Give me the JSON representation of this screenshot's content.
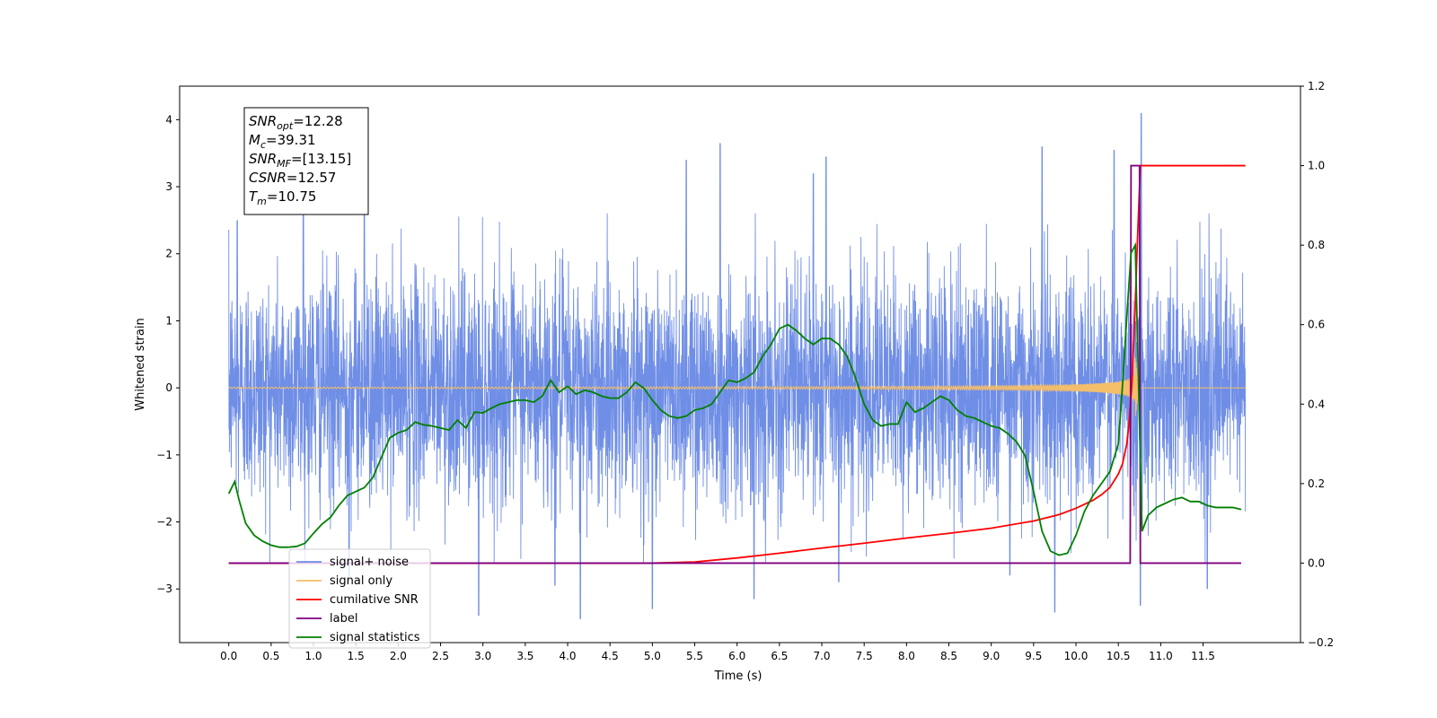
{
  "chart_data": {
    "type": "line",
    "xlabel": "Time (s)",
    "ylabel": "Whitened strain",
    "xlim": [
      -0.58,
      12.65
    ],
    "ylim": [
      -3.8,
      4.5
    ],
    "y2lim": [
      -0.2,
      1.2
    ],
    "grid": false,
    "x_ticks": [
      0.0,
      0.5,
      1.0,
      1.5,
      2.0,
      2.5,
      3.0,
      3.5,
      4.0,
      4.5,
      5.0,
      5.5,
      6.0,
      6.5,
      7.0,
      7.5,
      8.0,
      8.5,
      9.0,
      9.5,
      10.0,
      10.5,
      11.0,
      11.5
    ],
    "x_tick_labels": [
      "0.0",
      "0.5",
      "1.0",
      "1.5",
      "2.0",
      "2.5",
      "3.0",
      "3.5",
      "4.0",
      "4.5",
      "5.0",
      "5.5",
      "6.0",
      "6.5",
      "7.0",
      "7.5",
      "8.0",
      "8.5",
      "9.0",
      "9.5",
      "10.0",
      "10.5",
      "11.0",
      "11.5"
    ],
    "y_ticks": [
      -3,
      -2,
      -1,
      0,
      1,
      2,
      3,
      4
    ],
    "y_tick_labels": [
      "−3",
      "−2",
      "−1",
      "0",
      "1",
      "2",
      "3",
      "4"
    ],
    "y2_ticks": [
      -0.2,
      0.0,
      0.2,
      0.4,
      0.6,
      0.8,
      1.0,
      1.2
    ],
    "y2_tick_labels": [
      "−0.2",
      "0.0",
      "0.2",
      "0.4",
      "0.6",
      "0.8",
      "1.0",
      "1.2"
    ],
    "annotation": {
      "lines": [
        {
          "base": "SNR",
          "sub": "opt",
          "rest": "=12.28"
        },
        {
          "base": "M",
          "sub": "c",
          "rest": "=39.31"
        },
        {
          "base": "SNR",
          "sub": "MF",
          "rest": "=[13.15]"
        },
        {
          "base": "CSNR",
          "sub": "",
          "rest": "=12.57"
        },
        {
          "base": "T",
          "sub": "m",
          "rest": "=10.75"
        }
      ]
    },
    "legend": {
      "position": "lower-left",
      "entries": [
        {
          "label": "signal+ noise",
          "color": "#6f8ee6"
        },
        {
          "label": "signal only",
          "color": "#f5be6a"
        },
        {
          "label": "cumilative SNR",
          "color": "#ff0000"
        },
        {
          "label": "label",
          "color": "#800080"
        },
        {
          "label": "signal statistics",
          "color": "#008000"
        }
      ]
    },
    "series": [
      {
        "name": "signal+ noise",
        "axis": "left",
        "color": "#6f8ee6",
        "description_noise": {
          "x_start": 0.0,
          "x_end": 12.0,
          "std": 0.85
        },
        "peaks": [
          {
            "x": 0.1,
            "y": 2.5
          },
          {
            "x": 0.88,
            "y": 3.35
          },
          {
            "x": 1.6,
            "y": 3.1
          },
          {
            "x": 1.42,
            "y": -2.9
          },
          {
            "x": 2.95,
            "y": -3.4
          },
          {
            "x": 3.85,
            "y": -2.95
          },
          {
            "x": 4.15,
            "y": -3.45
          },
          {
            "x": 5.0,
            "y": -3.3
          },
          {
            "x": 5.4,
            "y": 3.4
          },
          {
            "x": 5.8,
            "y": 3.65
          },
          {
            "x": 6.2,
            "y": -3.15
          },
          {
            "x": 6.9,
            "y": 3.2
          },
          {
            "x": 7.05,
            "y": 3.45
          },
          {
            "x": 7.2,
            "y": -2.9
          },
          {
            "x": 9.22,
            "y": -2.8
          },
          {
            "x": 9.6,
            "y": 3.6
          },
          {
            "x": 9.75,
            "y": -3.35
          },
          {
            "x": 10.45,
            "y": 3.55
          },
          {
            "x": 10.77,
            "y": 4.1
          },
          {
            "x": 10.76,
            "y": -3.25
          },
          {
            "x": 11.55,
            "y": -3.0
          }
        ]
      },
      {
        "name": "signal only",
        "axis": "left",
        "color": "#f5be6a",
        "chirp": {
          "x_start": 0.0,
          "x_merge": 10.7,
          "x_end": 12.0,
          "peak_amp": 0.45
        }
      },
      {
        "name": "cumilative SNR",
        "axis": "right",
        "color": "#ff0000",
        "x": [
          0.0,
          5.0,
          5.5,
          6.0,
          6.5,
          7.0,
          7.5,
          8.0,
          8.5,
          9.0,
          9.5,
          9.8,
          10.0,
          10.2,
          10.3,
          10.4,
          10.5,
          10.55,
          10.6,
          10.63,
          10.66,
          10.68,
          10.7,
          10.72,
          10.76,
          12.0
        ],
        "y": [
          0.0,
          0.0,
          0.003,
          0.013,
          0.025,
          0.038,
          0.05,
          0.063,
          0.075,
          0.088,
          0.106,
          0.122,
          0.138,
          0.158,
          0.172,
          0.19,
          0.224,
          0.25,
          0.3,
          0.36,
          0.45,
          0.55,
          0.65,
          0.78,
          1.0,
          1.0
        ]
      },
      {
        "name": "label",
        "axis": "right",
        "color": "#800080",
        "x": [
          0.0,
          10.64,
          10.65,
          10.75,
          10.76,
          11.95
        ],
        "y": [
          0.0,
          0.0,
          1.0,
          1.0,
          0.0,
          0.0
        ]
      },
      {
        "name": "signal statistics",
        "axis": "right",
        "color": "#008000",
        "x": [
          0.0,
          0.07,
          0.12,
          0.2,
          0.3,
          0.4,
          0.5,
          0.6,
          0.7,
          0.8,
          0.9,
          1.0,
          1.1,
          1.2,
          1.3,
          1.4,
          1.5,
          1.6,
          1.7,
          1.8,
          1.9,
          2.0,
          2.1,
          2.2,
          2.3,
          2.4,
          2.5,
          2.6,
          2.7,
          2.8,
          2.9,
          3.0,
          3.1,
          3.2,
          3.3,
          3.4,
          3.5,
          3.6,
          3.7,
          3.8,
          3.9,
          4.0,
          4.1,
          4.2,
          4.3,
          4.4,
          4.5,
          4.6,
          4.7,
          4.8,
          4.9,
          5.0,
          5.1,
          5.2,
          5.3,
          5.4,
          5.5,
          5.6,
          5.7,
          5.8,
          5.9,
          6.0,
          6.1,
          6.2,
          6.3,
          6.4,
          6.5,
          6.6,
          6.7,
          6.8,
          6.9,
          7.0,
          7.1,
          7.2,
          7.3,
          7.4,
          7.5,
          7.6,
          7.7,
          7.8,
          7.9,
          8.0,
          8.1,
          8.2,
          8.3,
          8.4,
          8.5,
          8.6,
          8.7,
          8.8,
          8.9,
          9.0,
          9.1,
          9.2,
          9.3,
          9.4,
          9.5,
          9.6,
          9.7,
          9.8,
          9.9,
          10.0,
          10.1,
          10.2,
          10.3,
          10.4,
          10.5,
          10.55,
          10.6,
          10.65,
          10.7,
          10.75,
          10.78,
          10.85,
          10.95,
          11.05,
          11.15,
          11.25,
          11.35,
          11.45,
          11.55,
          11.65,
          11.75,
          11.85,
          11.95
        ],
        "y": [
          0.175,
          0.205,
          0.16,
          0.1,
          0.07,
          0.055,
          0.045,
          0.04,
          0.04,
          0.042,
          0.05,
          0.075,
          0.098,
          0.115,
          0.145,
          0.17,
          0.18,
          0.19,
          0.215,
          0.265,
          0.315,
          0.328,
          0.335,
          0.355,
          0.348,
          0.345,
          0.34,
          0.335,
          0.36,
          0.34,
          0.38,
          0.378,
          0.39,
          0.4,
          0.405,
          0.41,
          0.41,
          0.405,
          0.42,
          0.46,
          0.43,
          0.445,
          0.425,
          0.435,
          0.43,
          0.42,
          0.415,
          0.415,
          0.43,
          0.455,
          0.44,
          0.41,
          0.385,
          0.37,
          0.365,
          0.37,
          0.385,
          0.39,
          0.4,
          0.43,
          0.46,
          0.455,
          0.465,
          0.48,
          0.52,
          0.55,
          0.59,
          0.6,
          0.585,
          0.565,
          0.55,
          0.565,
          0.565,
          0.55,
          0.52,
          0.465,
          0.4,
          0.36,
          0.345,
          0.35,
          0.35,
          0.405,
          0.38,
          0.39,
          0.405,
          0.42,
          0.41,
          0.385,
          0.37,
          0.365,
          0.355,
          0.345,
          0.34,
          0.325,
          0.305,
          0.27,
          0.18,
          0.08,
          0.03,
          0.02,
          0.025,
          0.07,
          0.13,
          0.17,
          0.2,
          0.23,
          0.3,
          0.45,
          0.62,
          0.78,
          0.8,
          0.35,
          0.08,
          0.12,
          0.14,
          0.15,
          0.16,
          0.165,
          0.155,
          0.155,
          0.145,
          0.14,
          0.14,
          0.14,
          0.135
        ]
      }
    ]
  }
}
